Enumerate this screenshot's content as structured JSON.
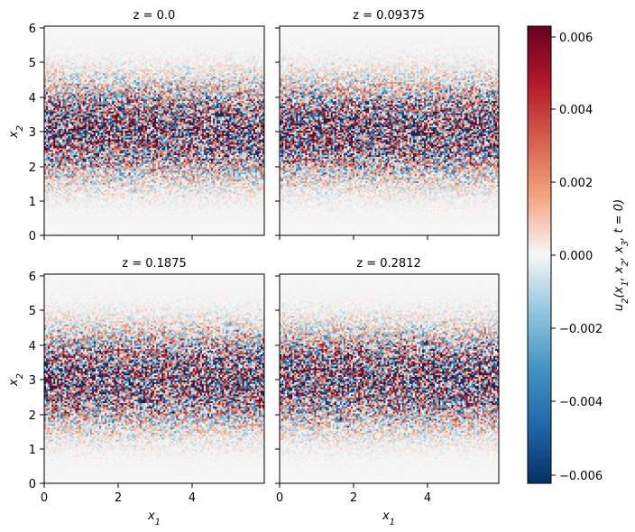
{
  "chart_data": {
    "type": "heatmap",
    "colormap": "RdBu_r",
    "panels": [
      {
        "title": "z = 0.0"
      },
      {
        "title": "z = 0.09375"
      },
      {
        "title": "z = 0.1875"
      },
      {
        "title": "z = 0.2812"
      }
    ],
    "x_range": [
      0,
      5.9
    ],
    "y_range": [
      0,
      6.1
    ],
    "x_ticks": [
      "0",
      "2",
      "4"
    ],
    "y_ticks": [
      "0",
      "1",
      "2",
      "3",
      "4",
      "5",
      "6"
    ],
    "xlabel": "x1",
    "ylabel": "x2",
    "colorbar": {
      "label": "u2(x1, x2, x3, t = 0)",
      "vmin": -0.0062,
      "vmax": 0.0062,
      "ticks": [
        "0.006",
        "0.004",
        "0.002",
        "0.000",
        "−0.002",
        "−0.004",
        "−0.006"
      ]
    },
    "noise_profile": {
      "center_x2": 3.05,
      "sigma_x2": 0.85,
      "peak_amplitude": 0.0062
    }
  }
}
